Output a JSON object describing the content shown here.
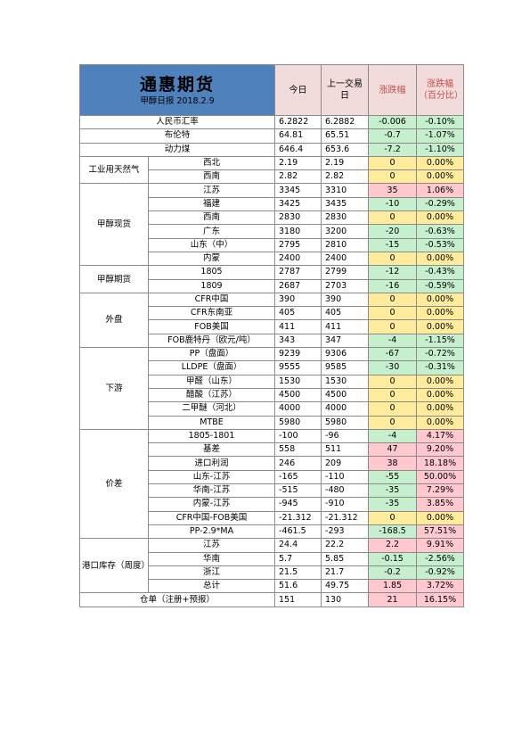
{
  "header": {
    "title": "通惠期货",
    "subtitle": "甲醇日报 2018.2.9",
    "col_today": "今日",
    "col_prev": "上一交易日",
    "col_change": "涨跌幅",
    "col_pct": "涨跌幅（百分比）"
  },
  "rows": [
    {
      "group": "",
      "label": "人民币汇率",
      "today": "6.2822",
      "prev": "6.2882",
      "change": "-0.006",
      "pct": "-0.10%",
      "color": "g"
    },
    {
      "group": "",
      "label": "布伦特",
      "today": "64.81",
      "prev": "65.51",
      "change": "-0.7",
      "pct": "-1.07%",
      "color": "g"
    },
    {
      "group": "",
      "label": "动力煤",
      "today": "646.4",
      "prev": "653.6",
      "change": "-7.2",
      "pct": "-1.10%",
      "color": "g"
    },
    {
      "group": "工业用天然气",
      "label": "西北",
      "today": "2.19",
      "prev": "2.19",
      "change": "0",
      "pct": "0.00%",
      "color": "y"
    },
    {
      "group": "工业用天然气",
      "label": "西南",
      "today": "2.82",
      "prev": "2.82",
      "change": "0",
      "pct": "0.00%",
      "color": "y"
    },
    {
      "group": "甲醇现货",
      "label": "江苏",
      "today": "3345",
      "prev": "3310",
      "change": "35",
      "pct": "1.06%",
      "color": "r"
    },
    {
      "group": "甲醇现货",
      "label": "福建",
      "today": "3425",
      "prev": "3435",
      "change": "-10",
      "pct": "-0.29%",
      "color": "g"
    },
    {
      "group": "甲醇现货",
      "label": "西南",
      "today": "2830",
      "prev": "2830",
      "change": "0",
      "pct": "0.00%",
      "color": "y"
    },
    {
      "group": "甲醇现货",
      "label": "广东",
      "today": "3180",
      "prev": "3200",
      "change": "-20",
      "pct": "-0.63%",
      "color": "g"
    },
    {
      "group": "甲醇现货",
      "label": "山东（中）",
      "today": "2795",
      "prev": "2810",
      "change": "-15",
      "pct": "-0.53%",
      "color": "g"
    },
    {
      "group": "甲醇现货",
      "label": "内蒙",
      "today": "2400",
      "prev": "2400",
      "change": "0",
      "pct": "0.00%",
      "color": "y"
    },
    {
      "group": "甲醇期货",
      "label": "1805",
      "today": "2787",
      "prev": "2799",
      "change": "-12",
      "pct": "-0.43%",
      "color": "g"
    },
    {
      "group": "甲醇期货",
      "label": "1809",
      "today": "2687",
      "prev": "2703",
      "change": "-16",
      "pct": "-0.59%",
      "color": "g"
    },
    {
      "group": "外盘",
      "label": "CFR中国",
      "today": "390",
      "prev": "390",
      "change": "0",
      "pct": "0.00%",
      "color": "y"
    },
    {
      "group": "外盘",
      "label": "CFR东南亚",
      "today": "405",
      "prev": "405",
      "change": "0",
      "pct": "0.00%",
      "color": "y"
    },
    {
      "group": "外盘",
      "label": "FOB美国",
      "today": "411",
      "prev": "411",
      "change": "0",
      "pct": "0.00%",
      "color": "y"
    },
    {
      "group": "外盘",
      "label": "FOB鹿特丹（欧元/吨）",
      "today": "343",
      "prev": "347",
      "change": "-4",
      "pct": "-1.15%",
      "color": "g"
    },
    {
      "group": "下游",
      "label": "PP（盘面）",
      "today": "9239",
      "prev": "9306",
      "change": "-67",
      "pct": "-0.72%",
      "color": "g"
    },
    {
      "group": "下游",
      "label": "LLDPE（盘面）",
      "today": "9555",
      "prev": "9585",
      "change": "-30",
      "pct": "-0.31%",
      "color": "g"
    },
    {
      "group": "下游",
      "label": "甲醛（山东）",
      "today": "1530",
      "prev": "1530",
      "change": "0",
      "pct": "0.00%",
      "color": "y"
    },
    {
      "group": "下游",
      "label": "醋酸（江苏）",
      "today": "4500",
      "prev": "4500",
      "change": "0",
      "pct": "0.00%",
      "color": "y"
    },
    {
      "group": "下游",
      "label": "二甲醚（河北）",
      "today": "4000",
      "prev": "4000",
      "change": "0",
      "pct": "0.00%",
      "color": "y"
    },
    {
      "group": "下游",
      "label": "MTBE",
      "today": "5980",
      "prev": "5980",
      "change": "0",
      "pct": "0.00%",
      "color": "y"
    },
    {
      "group": "价差",
      "label": "1805-1801",
      "today": "-100",
      "prev": "-96",
      "change": "-4",
      "pct": "4.17%",
      "color_change": "g",
      "color_pct": "r"
    },
    {
      "group": "价差",
      "label": "基差",
      "today": "558",
      "prev": "511",
      "change": "47",
      "pct": "9.20%",
      "color": "r"
    },
    {
      "group": "价差",
      "label": "进口利润",
      "today": "246",
      "prev": "209",
      "change": "38",
      "pct": "18.18%",
      "color": "r"
    },
    {
      "group": "价差",
      "label": "山东-江苏",
      "today": "-165",
      "prev": "-110",
      "change": "-55",
      "pct": "50.00%",
      "color_change": "g",
      "color_pct": "r"
    },
    {
      "group": "价差",
      "label": "华南-江苏",
      "today": "-515",
      "prev": "-480",
      "change": "-35",
      "pct": "7.29%",
      "color_change": "g",
      "color_pct": "r"
    },
    {
      "group": "价差",
      "label": "内蒙-江苏",
      "today": "-945",
      "prev": "-910",
      "change": "-35",
      "pct": "3.85%",
      "color_change": "g",
      "color_pct": "r"
    },
    {
      "group": "价差",
      "label": "CFR中国-FOB美国",
      "today": "-21.312",
      "prev": "-21.312",
      "change": "0",
      "pct": "0.00%",
      "color": "y"
    },
    {
      "group": "价差",
      "label": "PP-2.9*MA",
      "today": "-461.5",
      "prev": "-293",
      "change": "-168.5",
      "pct": "57.51%",
      "color_change": "g",
      "color_pct": "r"
    },
    {
      "group": "港口库存（周度）",
      "label": "江苏",
      "today": "24.4",
      "prev": "22.2",
      "change": "2.2",
      "pct": "9.91%",
      "color": "r"
    },
    {
      "group": "港口库存（周度）",
      "label": "华南",
      "today": "5.7",
      "prev": "5.85",
      "change": "-0.15",
      "pct": "-2.56%",
      "color": "g"
    },
    {
      "group": "港口库存（周度）",
      "label": "浙江",
      "today": "21.5",
      "prev": "21.7",
      "change": "-0.2",
      "pct": "-0.92%",
      "color": "g"
    },
    {
      "group": "港口库存（周度）",
      "label": "总计",
      "today": "51.6",
      "prev": "49.75",
      "change": "1.85",
      "pct": "3.72%",
      "color": "r"
    },
    {
      "group": "",
      "label": "仓单（注册+预报）",
      "today": "151",
      "prev": "130",
      "change": "21",
      "pct": "16.15%",
      "color": "r"
    }
  ]
}
